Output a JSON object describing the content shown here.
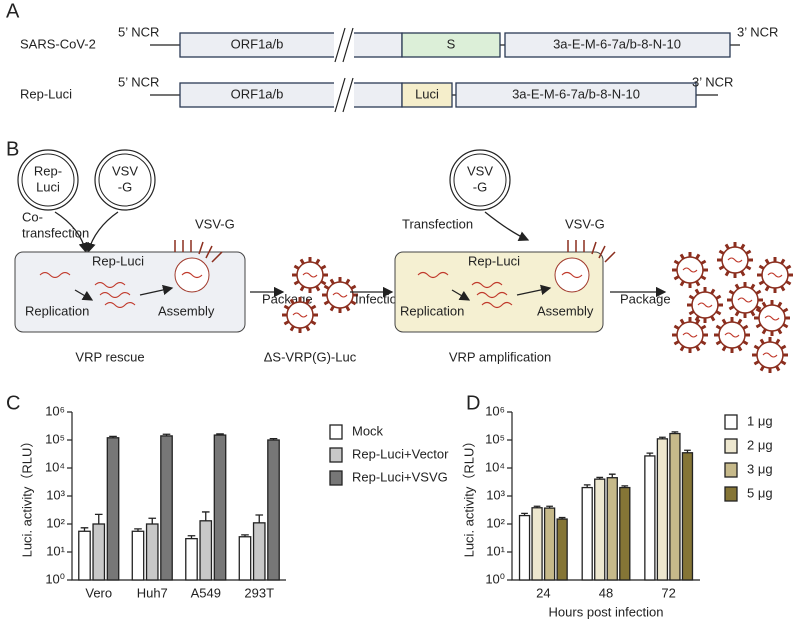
{
  "panel_a": {
    "label": "A",
    "rows": [
      {
        "name": "SARS-CoV-2",
        "ncr5": "5’ NCR",
        "ncr3": "3’ NCR",
        "orf": "ORF1a/b",
        "insert": "S",
        "tail": "3a-E-M-6-7a/b-8-N-10"
      },
      {
        "name": "Rep-Luci",
        "ncr5": "5’ NCR",
        "ncr3": "3’ NCR",
        "orf": "ORF1a/b",
        "insert": "Luci",
        "tail": "3a-E-M-6-7a/b-8-N-10"
      }
    ]
  },
  "panel_b": {
    "label": "B",
    "plasmid1": [
      "Rep-",
      "Luci"
    ],
    "plasmid2": [
      "VSV",
      "-G"
    ],
    "cotransfection": [
      "Co-",
      "transfection"
    ],
    "vsvg1": "VSV-G",
    "replicon1": "Rep-Luci",
    "replication1": "Replication",
    "assembly1": "Assembly",
    "package1": "Package",
    "rescue": "VRP rescue",
    "vrp": "ΔS-VRP(G)-Luc",
    "infection": "Infection",
    "plasmid3": [
      "VSV",
      "-G"
    ],
    "transfection": "Transfection",
    "vsvg2": "VSV-G",
    "replicon2": "Rep-Luci",
    "replication2": "Replication",
    "assembly2": "Assembly",
    "package2": "Package",
    "amplification": "VRP amplification"
  },
  "chart_data": [
    {
      "type": "bar",
      "panel": "C",
      "ylabel": "Luci. activity（RLU）",
      "log_y": true,
      "legend": "right",
      "categories": [
        "Vero",
        "Huh7",
        "A549",
        "293T"
      ],
      "series": [
        {
          "name": "Mock",
          "color": "#ffffff",
          "values": [
            55,
            55,
            30,
            35
          ],
          "errors": [
            18,
            12,
            8,
            6
          ]
        },
        {
          "name": "Rep-Luci+Vector",
          "color": "#c8c8c8",
          "values": [
            100,
            100,
            130,
            110
          ],
          "errors": [
            120,
            60,
            140,
            100
          ]
        },
        {
          "name": "Rep-Luci+VSVG",
          "color": "#777777",
          "values": [
            120000,
            140000,
            150000,
            100000
          ],
          "errors": [
            15000,
            20000,
            15000,
            12000
          ]
        }
      ],
      "ylim": [
        1,
        1000000
      ],
      "yticks": [
        {
          "value": 1,
          "label": "10⁰"
        },
        {
          "value": 10,
          "label": "10¹"
        },
        {
          "value": 100,
          "label": "10²"
        },
        {
          "value": 1000,
          "label": "10³"
        },
        {
          "value": 10000,
          "label": "10⁴"
        },
        {
          "value": 100000,
          "label": "10⁵"
        },
        {
          "value": 1000000,
          "label": "10⁶"
        }
      ]
    },
    {
      "type": "bar",
      "panel": "D",
      "ylabel": "Luci. activity（RLU）",
      "xlabel": "Hours post infection",
      "log_y": true,
      "legend": "right",
      "categories": [
        "24",
        "48",
        "72"
      ],
      "series": [
        {
          "name": "1 μg",
          "color": "#ffffff",
          "values": [
            200,
            2000,
            27000
          ],
          "errors": [
            40,
            500,
            7000
          ]
        },
        {
          "name": "2 μg",
          "color": "#ede7cf",
          "values": [
            380,
            4000,
            110000
          ],
          "errors": [
            50,
            600,
            15000
          ]
        },
        {
          "name": "3 μg",
          "color": "#c6b98a",
          "values": [
            370,
            4500,
            170000
          ],
          "errors": [
            60,
            1500,
            25000
          ]
        },
        {
          "name": "5 μg",
          "color": "#857536",
          "values": [
            150,
            2000,
            35000
          ],
          "errors": [
            20,
            300,
            8000
          ]
        }
      ],
      "ylim": [
        1,
        1000000
      ],
      "yticks": [
        {
          "value": 1,
          "label": "10⁰"
        },
        {
          "value": 10,
          "label": "10¹"
        },
        {
          "value": 100,
          "label": "10²"
        },
        {
          "value": 1000,
          "label": "10³"
        },
        {
          "value": 10000,
          "label": "10⁴"
        },
        {
          "value": 100000,
          "label": "10⁵"
        },
        {
          "value": 1000000,
          "label": "10⁶"
        }
      ]
    }
  ]
}
